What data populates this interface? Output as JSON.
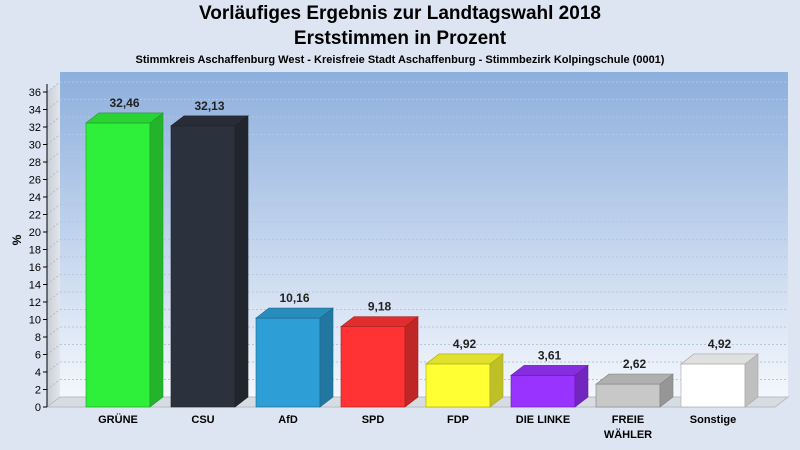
{
  "chart_data": {
    "type": "bar",
    "title": "Vorläufiges Ergebnis zur Landtagswahl 2018",
    "title_line2": "Erststimmen in Prozent",
    "subtitle": "Stimmkreis Aschaffenburg West - Kreisfreie Stadt Aschaffenburg - Stimmbezirk Kolpingschule (0001)",
    "ylabel": "%",
    "ylim": [
      0,
      36
    ],
    "yticks": [
      0,
      2,
      4,
      6,
      8,
      10,
      12,
      14,
      16,
      18,
      20,
      22,
      24,
      26,
      28,
      30,
      32,
      34,
      36
    ],
    "grid": true,
    "categories": [
      {
        "name": "GRÜNE",
        "name_line2": "",
        "value": 32.46,
        "label": "32,46",
        "color": "#2ef03a"
      },
      {
        "name": "CSU",
        "name_line2": "",
        "value": 32.13,
        "label": "32,13",
        "color": "#2c323d"
      },
      {
        "name": "AfD",
        "name_line2": "",
        "value": 10.16,
        "label": "10,16",
        "color": "#2d9fd6"
      },
      {
        "name": "SPD",
        "name_line2": "",
        "value": 9.18,
        "label": "9,18",
        "color": "#ff3333"
      },
      {
        "name": "FDP",
        "name_line2": "",
        "value": 4.92,
        "label": "4,92",
        "color": "#ffff33"
      },
      {
        "name": "DIE LINKE",
        "name_line2": "",
        "value": 3.61,
        "label": "3,61",
        "color": "#9933ff"
      },
      {
        "name": "FREIE",
        "name_line2": "WÄHLER",
        "value": 2.62,
        "label": "2,62",
        "color": "#c8c8c8"
      },
      {
        "name": "Sonstige",
        "name_line2": "",
        "value": 4.92,
        "label": "4,92",
        "color": "#ffffff"
      }
    ]
  }
}
